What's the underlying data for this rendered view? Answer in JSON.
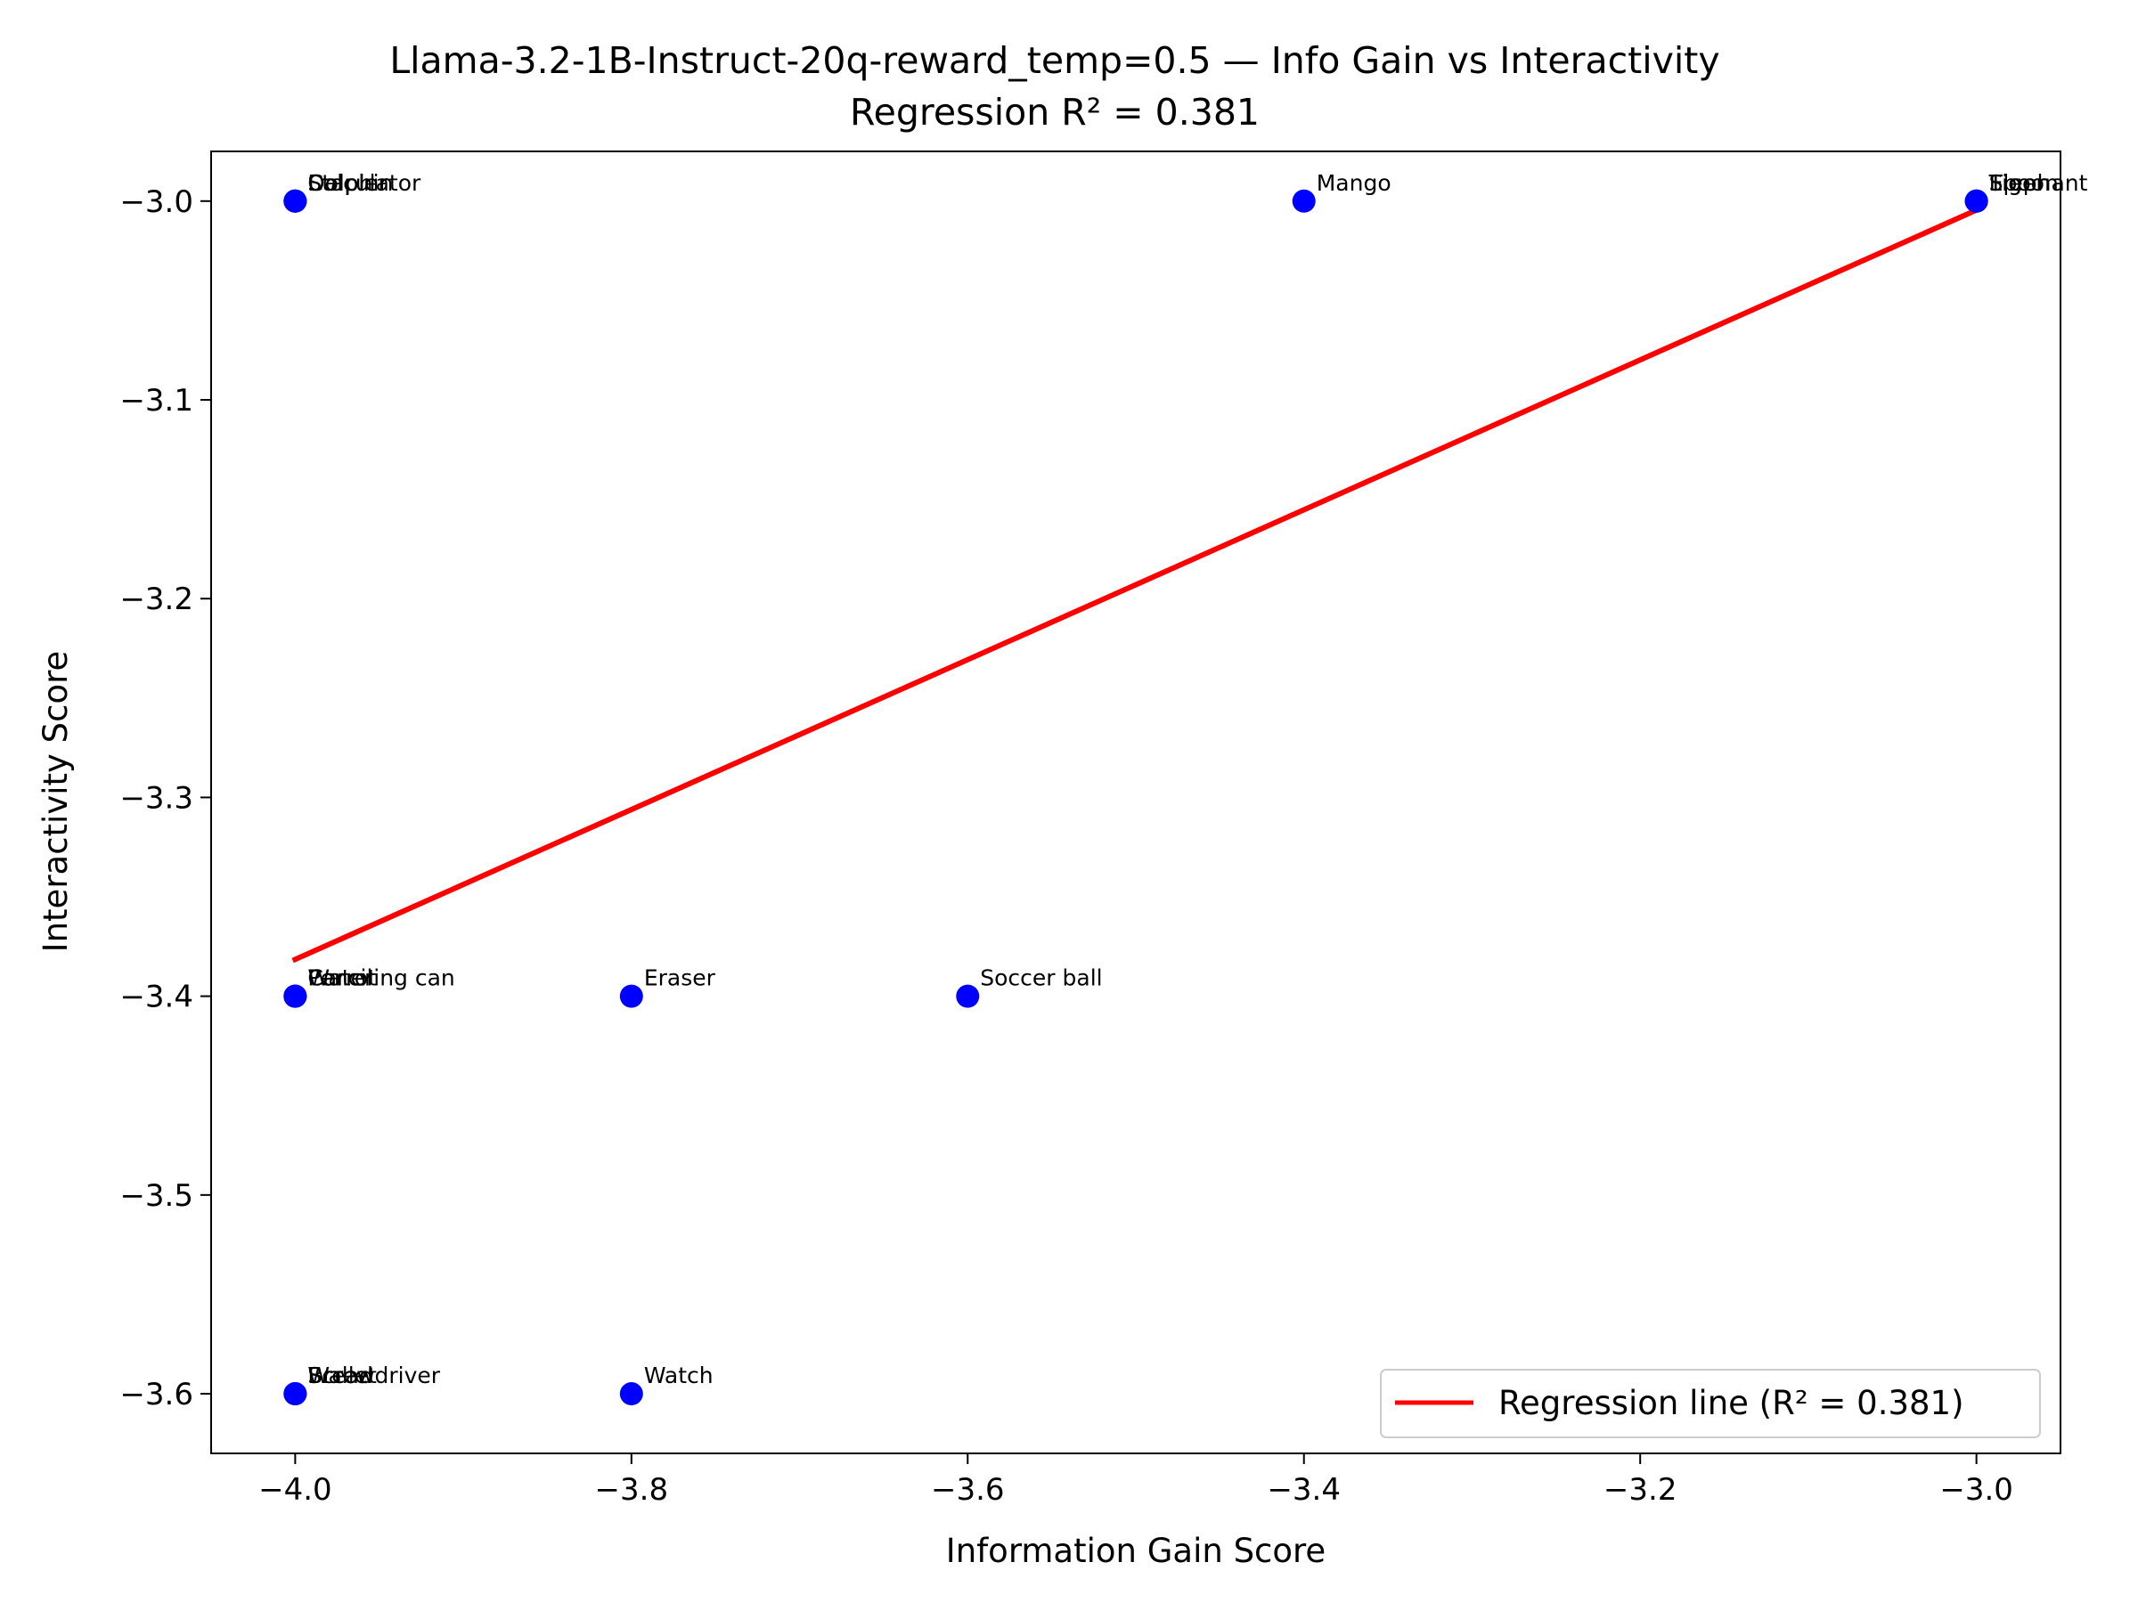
{
  "chart_data": {
    "type": "scatter",
    "title": "Llama-3.2-1B-Instruct-20q-reward_temp=0.5 — Info Gain vs Interactivity",
    "subtitle": "Regression R² = 0.381",
    "xlabel": "Information Gain Score",
    "ylabel": "Interactivity Score",
    "xlim": [
      -4.05,
      -2.95
    ],
    "ylim": [
      -3.63,
      -2.975
    ],
    "xticks": [
      -4.0,
      -3.8,
      -3.6,
      -3.4,
      -3.2,
      -3.0
    ],
    "xtick_labels": [
      "−4.0",
      "−3.8",
      "−3.6",
      "−3.4",
      "−3.2",
      "−3.0"
    ],
    "yticks": [
      -3.0,
      -3.1,
      -3.2,
      -3.3,
      -3.4,
      -3.5,
      -3.6
    ],
    "ytick_labels": [
      "−3.0",
      "−3.1",
      "−3.2",
      "−3.3",
      "−3.4",
      "−3.5",
      "−3.6"
    ],
    "grid": false,
    "point_color": "#0000ff",
    "line_color": "#ff0000",
    "points": [
      {
        "x": -4.0,
        "y": -3.0,
        "label": "Dolphin"
      },
      {
        "x": -4.0,
        "y": -3.0,
        "label": "Stapler"
      },
      {
        "x": -4.0,
        "y": -3.0,
        "label": "Calculator"
      },
      {
        "x": -3.4,
        "y": -3.0,
        "label": "Mango"
      },
      {
        "x": -3.0,
        "y": -3.0,
        "label": "Tiger"
      },
      {
        "x": -3.0,
        "y": -3.0,
        "label": "Spoon"
      },
      {
        "x": -3.0,
        "y": -3.0,
        "label": "Elephant"
      },
      {
        "x": -4.0,
        "y": -3.4,
        "label": "Pencil"
      },
      {
        "x": -4.0,
        "y": -3.4,
        "label": "Watering can"
      },
      {
        "x": -4.0,
        "y": -3.4,
        "label": "Carrot"
      },
      {
        "x": -3.8,
        "y": -3.4,
        "label": "Eraser"
      },
      {
        "x": -3.6,
        "y": -3.4,
        "label": "Soccer ball"
      },
      {
        "x": -4.0,
        "y": -3.6,
        "label": "Bread"
      },
      {
        "x": -4.0,
        "y": -3.6,
        "label": "Screwdriver"
      },
      {
        "x": -4.0,
        "y": -3.6,
        "label": "Wallet"
      },
      {
        "x": -3.8,
        "y": -3.6,
        "label": "Watch"
      }
    ],
    "regression_line": {
      "x": [
        -4.0,
        -3.0
      ],
      "y": [
        -3.3815,
        -3.0045
      ]
    },
    "legend": {
      "label": "Regression line (R² = 0.381)",
      "placement": "lower-right"
    }
  }
}
